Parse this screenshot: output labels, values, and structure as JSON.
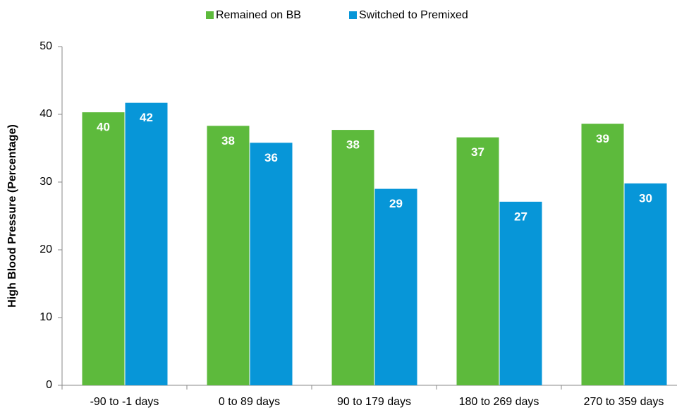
{
  "chart_data": {
    "type": "bar",
    "y_label": "High Blood Pressure (Percentage)",
    "categories": [
      "-90 to -1 days",
      "0 to 89 days",
      "90 to 179 days",
      "180 to 269 days",
      "270 to 359 days"
    ],
    "series": [
      {
        "name": "Remained on BB",
        "color": "#5dba3c",
        "values": [
          40.3,
          38.3,
          37.7,
          36.6,
          38.6
        ],
        "value_labels": [
          "40",
          "38",
          "38",
          "37",
          "39"
        ]
      },
      {
        "name": "Switched to Premixed",
        "color": "#0796d8",
        "values": [
          41.7,
          35.8,
          29.0,
          27.1,
          29.8
        ],
        "value_labels": [
          "42",
          "36",
          "29",
          "27",
          "30"
        ]
      }
    ],
    "ylim": [
      0,
      50
    ],
    "yticks": [
      0,
      10,
      20,
      30,
      40,
      50
    ],
    "grid": false,
    "legend": "top"
  }
}
